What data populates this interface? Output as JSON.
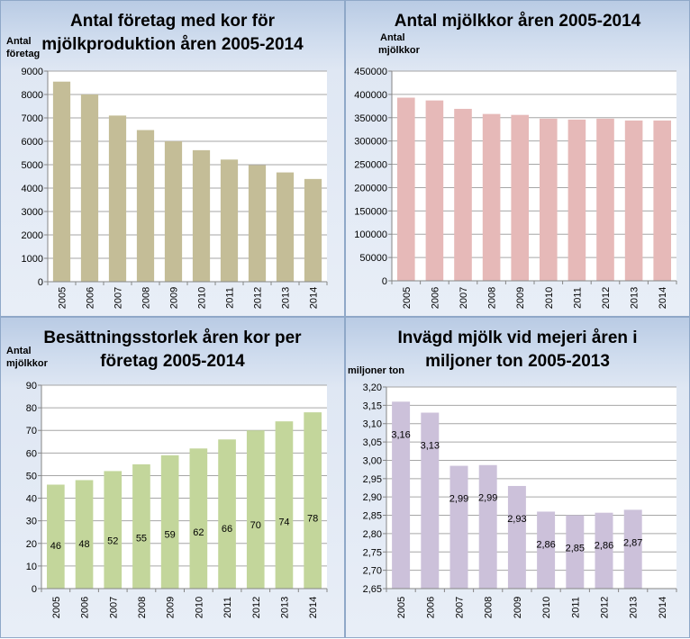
{
  "colors": {
    "panel1_bar": "#c4bd97",
    "panel2_bar": "#e6b9b8",
    "panel3_bar": "#c3d69b",
    "panel4_bar": "#ccc1da",
    "grid": "#a6a6a6"
  },
  "chart_data": [
    {
      "type": "bar",
      "title": "Antal företag med kor för mjölkproduktion åren 2005-2014",
      "title_lines": [
        "Antal företag med kor för",
        "mjölkproduktion  åren 2005-2014"
      ],
      "ylabel_lines": [
        "Antal",
        "företag"
      ],
      "xlabel": "",
      "categories": [
        "2005",
        "2006",
        "2007",
        "2008",
        "2009",
        "2010",
        "2011",
        "2012",
        "2013",
        "2014"
      ],
      "values": [
        8550,
        8000,
        7100,
        6480,
        6000,
        5620,
        5220,
        4980,
        4670,
        4390
      ],
      "ylim": [
        0,
        9000
      ],
      "yticks": [
        0,
        1000,
        2000,
        3000,
        4000,
        5000,
        6000,
        7000,
        8000,
        9000
      ],
      "ytick_labels": [
        "0",
        "1000",
        "2000",
        "3000",
        "4000",
        "5000",
        "6000",
        "7000",
        "8000",
        "9000"
      ],
      "data_labels": []
    },
    {
      "type": "bar",
      "title": "Antal mjölkkor åren 2005-2014",
      "title_lines": [
        "Antal mjölkkor  åren 2005-2014"
      ],
      "ylabel_lines": [
        "Antal",
        "mjölkkor"
      ],
      "xlabel": "",
      "categories": [
        "2005",
        "2006",
        "2007",
        "2008",
        "2009",
        "2010",
        "2011",
        "2012",
        "2013",
        "2014"
      ],
      "values": [
        393000,
        387000,
        369000,
        358000,
        356000,
        348000,
        346000,
        348000,
        344000,
        344000
      ],
      "ylim": [
        0,
        450000
      ],
      "yticks": [
        0,
        50000,
        100000,
        150000,
        200000,
        250000,
        300000,
        350000,
        400000,
        450000
      ],
      "ytick_labels": [
        "0",
        "50000",
        "100000",
        "150000",
        "200000",
        "250000",
        "300000",
        "350000",
        "400000",
        "450000"
      ],
      "data_labels": []
    },
    {
      "type": "bar",
      "title": "Besättningsstorlek åren kor per företag 2005-2014",
      "title_lines": [
        "Besättningsstorlek  åren kor per",
        "företag 2005-2014"
      ],
      "ylabel_lines": [
        "Antal",
        "mjölkkor"
      ],
      "xlabel": "",
      "categories": [
        "2005",
        "2006",
        "2007",
        "2008",
        "2009",
        "2010",
        "2011",
        "2012",
        "2013",
        "2014"
      ],
      "values": [
        46,
        48,
        52,
        55,
        59,
        62,
        66,
        70,
        74,
        78
      ],
      "ylim": [
        0,
        90
      ],
      "yticks": [
        0,
        10,
        20,
        30,
        40,
        50,
        60,
        70,
        80,
        90
      ],
      "ytick_labels": [
        "0",
        "10",
        "20",
        "30",
        "40",
        "50",
        "60",
        "70",
        "80",
        "90"
      ],
      "data_labels": [
        "46",
        "48",
        "52",
        "55",
        "59",
        "62",
        "66",
        "70",
        "74",
        "78"
      ]
    },
    {
      "type": "bar",
      "title": "Invägd mjölk vid mejeri åren i miljoner ton 2005-2013",
      "title_lines": [
        "Invägd mjölk vid mejeri åren i",
        "miljoner ton 2005-2013"
      ],
      "ylabel_lines": [
        "miljoner ton"
      ],
      "xlabel": "",
      "categories": [
        "2005",
        "2006",
        "2007",
        "2008",
        "2009",
        "2010",
        "2011",
        "2012",
        "2013",
        "2014"
      ],
      "values": [
        3.16,
        3.13,
        2.985,
        2.987,
        2.93,
        2.86,
        2.85,
        2.857,
        2.865,
        null
      ],
      "ylim": [
        2.65,
        3.2
      ],
      "yticks": [
        2.65,
        2.7,
        2.75,
        2.8,
        2.85,
        2.9,
        2.95,
        3.0,
        3.05,
        3.1,
        3.15,
        3.2
      ],
      "ytick_labels": [
        "2,65",
        "2,70",
        "2,75",
        "2,80",
        "2,85",
        "2,90",
        "2,95",
        "3,00",
        "3,05",
        "3,10",
        "3,15",
        "3,20"
      ],
      "data_labels": [
        "3,16",
        "3,13",
        "2,99",
        "2,99",
        "2,93",
        "2,86",
        "2,85",
        "2,86",
        "2,87",
        ""
      ]
    }
  ]
}
